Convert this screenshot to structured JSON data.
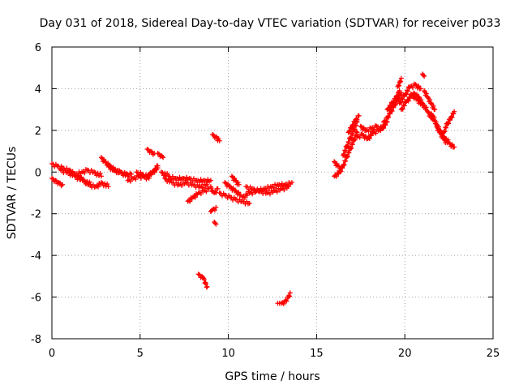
{
  "chart_data": {
    "type": "scatter",
    "title": "Day 031 of 2018, Sidereal Day-to-day VTEC variation (SDTVAR) for receiver p033",
    "xlabel": "GPS time / hours",
    "ylabel": "SDTVAR / TECUs",
    "xlim": [
      0,
      25
    ],
    "ylim": [
      -8,
      6
    ],
    "x_ticks": [
      0,
      5,
      10,
      15,
      20,
      25
    ],
    "y_ticks": [
      -8,
      -6,
      -4,
      -2,
      0,
      2,
      4,
      6
    ],
    "grid": true,
    "marker": "plus",
    "color": "#ff0000",
    "series": [
      {
        "name": "SDTVAR",
        "segments": [
          {
            "x": [
              0.0,
              0.3,
              0.6,
              1.0,
              1.3,
              1.7,
              2.0,
              2.4,
              2.8
            ],
            "y": [
              0.4,
              0.3,
              0.2,
              0.1,
              -0.1,
              0.0,
              0.1,
              0.0,
              -0.2
            ]
          },
          {
            "x": [
              0.0,
              0.2,
              0.4,
              0.6
            ],
            "y": [
              -0.3,
              -0.4,
              -0.5,
              -0.6
            ]
          },
          {
            "x": [
              0.5,
              0.9,
              1.3,
              1.8,
              2.2
            ],
            "y": [
              0.1,
              0.0,
              -0.2,
              -0.4,
              -0.6
            ]
          },
          {
            "x": [
              1.5,
              1.8,
              2.1,
              2.5,
              2.8,
              3.2
            ],
            "y": [
              -0.2,
              -0.4,
              -0.6,
              -0.7,
              -0.5,
              -0.7
            ]
          },
          {
            "x": [
              2.8,
              3.0,
              3.3,
              3.6,
              3.9,
              4.3
            ],
            "y": [
              0.7,
              0.5,
              0.3,
              0.1,
              0.0,
              -0.2
            ]
          },
          {
            "x": [
              3.2,
              3.5,
              3.9,
              4.2,
              4.5
            ],
            "y": [
              0.3,
              0.1,
              0.0,
              -0.1,
              -0.1
            ]
          },
          {
            "x": [
              4.3,
              4.6,
              4.9,
              5.2,
              5.5
            ],
            "y": [
              -0.4,
              -0.3,
              -0.2,
              -0.2,
              -0.3
            ]
          },
          {
            "x": [
              4.8,
              5.1,
              5.4,
              5.7,
              6.0
            ],
            "y": [
              0.0,
              -0.1,
              -0.2,
              0.0,
              0.2
            ]
          },
          {
            "x": [
              5.5,
              5.7,
              5.8,
              6.0
            ],
            "y": [
              -0.1,
              0.0,
              0.1,
              0.3
            ]
          },
          {
            "x": [
              5.4,
              5.6,
              5.8
            ],
            "y": [
              1.1,
              1.0,
              0.9
            ]
          },
          {
            "x": [
              6.0,
              6.2,
              6.3
            ],
            "y": [
              0.9,
              0.8,
              0.7
            ]
          },
          {
            "x": [
              6.2,
              6.6,
              7.0,
              7.4,
              7.8,
              8.2,
              8.6,
              9.0
            ],
            "y": [
              0.0,
              -0.2,
              -0.3,
              -0.3,
              -0.3,
              -0.4,
              -0.4,
              -0.4
            ]
          },
          {
            "x": [
              6.4,
              6.8,
              7.2,
              7.6,
              8.0,
              8.4,
              8.8
            ],
            "y": [
              -0.3,
              -0.5,
              -0.6,
              -0.5,
              -0.6,
              -0.7,
              -0.6
            ]
          },
          {
            "x": [
              7.7,
              8.0,
              8.3,
              8.6,
              8.9
            ],
            "y": [
              -1.4,
              -1.2,
              -1.0,
              -0.9,
              -0.8
            ]
          },
          {
            "x": [
              8.3,
              8.5,
              8.6,
              8.7,
              8.8
            ],
            "y": [
              -4.9,
              -5.0,
              -5.1,
              -5.3,
              -5.5
            ]
          },
          {
            "x": [
              9.0,
              9.1,
              9.2,
              9.4
            ],
            "y": [
              -0.7,
              -0.9,
              -1.0,
              -0.8
            ]
          },
          {
            "x": [
              9.0,
              9.1,
              9.3
            ],
            "y": [
              -1.9,
              -1.8,
              -1.7
            ]
          },
          {
            "x": [
              9.2,
              9.3
            ],
            "y": [
              -2.4,
              -2.5
            ]
          },
          {
            "x": [
              9.1,
              9.3,
              9.5
            ],
            "y": [
              1.8,
              1.7,
              1.5
            ]
          },
          {
            "x": [
              9.5,
              9.8,
              10.1,
              10.4,
              10.8,
              11.2
            ],
            "y": [
              -1.0,
              -1.1,
              -1.2,
              -1.3,
              -1.4,
              -1.5
            ]
          },
          {
            "x": [
              9.8,
              10.1,
              10.4,
              10.7
            ],
            "y": [
              -0.5,
              -0.7,
              -0.9,
              -1.1
            ]
          },
          {
            "x": [
              10.2,
              10.4,
              10.6
            ],
            "y": [
              -0.2,
              -0.4,
              -0.6
            ]
          },
          {
            "x": [
              10.8,
              11.2,
              11.6,
              12.0,
              12.4,
              12.8,
              13.2,
              13.6
            ],
            "y": [
              -1.2,
              -1.0,
              -0.9,
              -0.8,
              -0.7,
              -0.6,
              -0.6,
              -0.5
            ]
          },
          {
            "x": [
              11.0,
              11.4,
              11.8,
              12.2,
              12.6,
              13.0,
              13.4
            ],
            "y": [
              -0.7,
              -0.8,
              -0.9,
              -1.0,
              -0.9,
              -0.8,
              -0.7
            ]
          },
          {
            "x": [
              12.8,
              13.0,
              13.2,
              13.4,
              13.5
            ],
            "y": [
              -6.3,
              -6.3,
              -6.2,
              -6.0,
              -5.8
            ]
          },
          {
            "x": [
              16.0,
              16.3
            ],
            "y": [
              -0.2,
              0.0
            ]
          },
          {
            "x": [
              16.0,
              16.2,
              16.4
            ],
            "y": [
              0.5,
              0.3,
              0.2
            ]
          },
          {
            "x": [
              16.3,
              16.5,
              16.7,
              16.9,
              17.1,
              17.3
            ],
            "y": [
              0.0,
              0.3,
              0.7,
              1.1,
              1.5,
              1.9
            ]
          },
          {
            "x": [
              16.5,
              16.7,
              16.9,
              17.1,
              17.3
            ],
            "y": [
              0.8,
              1.2,
              1.6,
              2.0,
              2.4
            ]
          },
          {
            "x": [
              16.8,
              17.0,
              17.2,
              17.4
            ],
            "y": [
              1.9,
              2.2,
              2.5,
              2.7
            ]
          },
          {
            "x": [
              17.3,
              17.6,
              17.9,
              18.2,
              18.5,
              18.8
            ],
            "y": [
              1.7,
              1.8,
              1.6,
              1.9,
              2.0,
              2.2
            ]
          },
          {
            "x": [
              17.5,
              17.8,
              18.1,
              18.4,
              18.7,
              19.0
            ],
            "y": [
              2.2,
              2.0,
              2.1,
              2.2,
              2.1,
              2.4
            ]
          },
          {
            "x": [
              18.8,
              19.0,
              19.2,
              19.4,
              19.6,
              19.8
            ],
            "y": [
              2.4,
              2.6,
              2.9,
              3.2,
              3.5,
              3.8
            ]
          },
          {
            "x": [
              19.0,
              19.3,
              19.5,
              19.7
            ],
            "y": [
              3.0,
              3.3,
              3.6,
              3.9
            ]
          },
          {
            "x": [
              19.6,
              19.7,
              19.8
            ],
            "y": [
              4.1,
              4.3,
              4.5
            ]
          },
          {
            "x": [
              19.7,
              20.0,
              20.3,
              20.6,
              20.9
            ],
            "y": [
              3.3,
              3.7,
              4.1,
              4.2,
              4.0
            ]
          },
          {
            "x": [
              19.8,
              20.1,
              20.4,
              20.7,
              21.0
            ],
            "y": [
              3.0,
              3.4,
              3.7,
              3.5,
              3.2
            ]
          },
          {
            "x": [
              20.5,
              20.8,
              21.0,
              21.3,
              21.6
            ],
            "y": [
              3.8,
              3.6,
              3.3,
              2.9,
              2.5
            ]
          },
          {
            "x": [
              21.0,
              21.1
            ],
            "y": [
              4.7,
              4.6
            ]
          },
          {
            "x": [
              21.1,
              21.3,
              21.5,
              21.7
            ],
            "y": [
              3.9,
              3.6,
              3.3,
              3.0
            ]
          },
          {
            "x": [
              21.5,
              21.8,
              22.0,
              22.2,
              22.5,
              22.8
            ],
            "y": [
              2.8,
              2.3,
              2.0,
              1.7,
              1.4,
              1.2
            ]
          },
          {
            "x": [
              21.8,
              22.0,
              22.2,
              22.4
            ],
            "y": [
              2.2,
              1.9,
              1.6,
              1.4
            ]
          },
          {
            "x": [
              22.2,
              22.4,
              22.6,
              22.8
            ],
            "y": [
              1.9,
              2.3,
              2.6,
              2.9
            ]
          }
        ]
      }
    ]
  }
}
